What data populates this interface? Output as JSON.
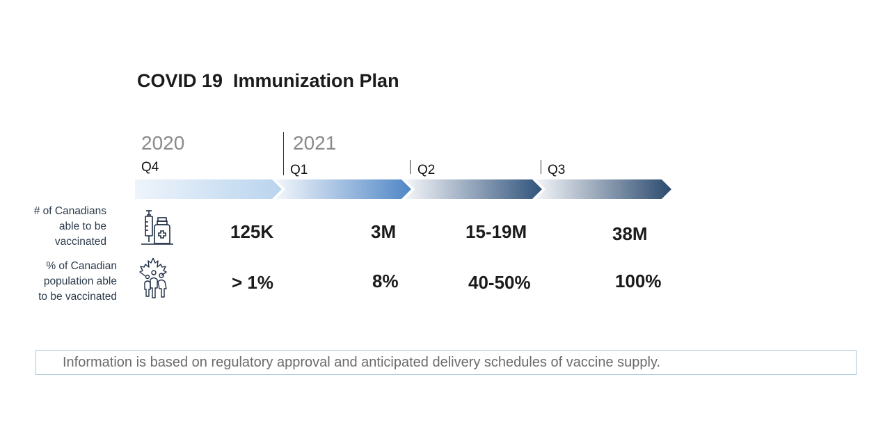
{
  "title": "COVID 19  Immunization Plan",
  "timeline": {
    "years": [
      "2020",
      "2021"
    ],
    "quarters": [
      "Q4",
      "Q1",
      "Q2",
      "Q3"
    ],
    "segment_colors": [
      [
        "#eef4fb",
        "#b9d4ee"
      ],
      [
        "#f2f6fb",
        "#4f86c6"
      ],
      [
        "#f4f6f9",
        "#30537c"
      ],
      [
        "#f4f6f9",
        "#2b4a6e"
      ]
    ]
  },
  "rows": {
    "canadians": {
      "label_lines": [
        "# of Canadians",
        "able to be",
        "vaccinated"
      ],
      "icon": "syringe-vial-icon",
      "values": [
        "125K",
        "3M",
        "15-19M",
        "38M"
      ]
    },
    "population": {
      "label_lines": [
        "% of Canadian",
        "population able",
        "to be vaccinated"
      ],
      "icon": "maple-leaf-people-icon",
      "values": [
        "> 1%",
        "8%",
        "40-50%",
        "100%"
      ]
    }
  },
  "note": "Information is based on regulatory approval and anticipated delivery schedules of vaccine supply."
}
